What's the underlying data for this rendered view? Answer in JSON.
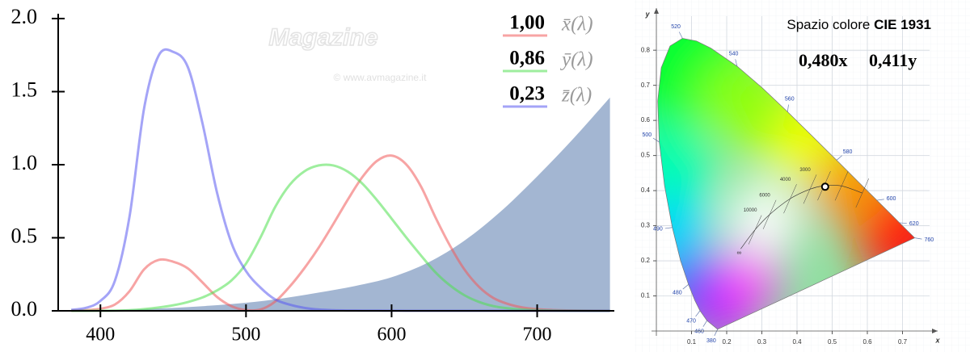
{
  "chart_data": [
    {
      "type": "line",
      "watermark": "Magazine",
      "watermark_url": "© www.avmagazine.it",
      "x": [
        380,
        390,
        400,
        410,
        420,
        430,
        440,
        450,
        460,
        470,
        480,
        490,
        500,
        510,
        520,
        530,
        540,
        550,
        560,
        570,
        580,
        590,
        600,
        610,
        620,
        630,
        640,
        650,
        660,
        670,
        680,
        690,
        700,
        710,
        720,
        730,
        740,
        750
      ],
      "xlim": [
        371,
        753
      ],
      "xticks": [
        400,
        500,
        600,
        700
      ],
      "ylim": [
        0,
        2
      ],
      "yticks": [
        {
          "value": 0,
          "label": "0.0"
        },
        {
          "value": 0.5,
          "label": "0.5"
        },
        {
          "value": 1,
          "label": "1.0"
        },
        {
          "value": 1.5,
          "label": "1.5"
        },
        {
          "value": 2,
          "label": "2.0"
        }
      ],
      "series": [
        {
          "name": "x̄(λ)",
          "color": "#f05a5a",
          "tristimulus": 1.0,
          "tristimulus_label": "1,00",
          "values": [
            0.0014,
            0.0042,
            0.0143,
            0.0435,
            0.1344,
            0.2839,
            0.3483,
            0.3362,
            0.2908,
            0.1954,
            0.0956,
            0.032,
            0.0049,
            0.0093,
            0.0633,
            0.1655,
            0.2904,
            0.4334,
            0.5945,
            0.7621,
            0.9163,
            1.0263,
            1.0622,
            1.0026,
            0.8544,
            0.6424,
            0.4479,
            0.2835,
            0.1649,
            0.0874,
            0.0468,
            0.0227,
            0.0114,
            0.0058,
            0.0029,
            0.0014,
            0.0007,
            0.0003
          ]
        },
        {
          "name": "ȳ(λ)",
          "color": "#4fe04f",
          "tristimulus": 0.86,
          "tristimulus_label": "0,86",
          "values": [
            0,
            0.0001,
            0.0004,
            0.0012,
            0.004,
            0.0116,
            0.023,
            0.038,
            0.06,
            0.091,
            0.139,
            0.208,
            0.323,
            0.503,
            0.71,
            0.862,
            0.954,
            0.995,
            0.995,
            0.952,
            0.87,
            0.757,
            0.631,
            0.503,
            0.381,
            0.265,
            0.175,
            0.107,
            0.061,
            0.032,
            0.017,
            0.0082,
            0.0041,
            0.0021,
            0.001,
            0.0005,
            0.0002,
            0.0001
          ]
        },
        {
          "name": "z̄(λ)",
          "color": "#5a5af0",
          "tristimulus": 0.23,
          "tristimulus_label": "0,23",
          "values": [
            0.0065,
            0.0201,
            0.0679,
            0.2074,
            0.6456,
            1.3856,
            1.7471,
            1.7721,
            1.6692,
            1.2876,
            0.813,
            0.4652,
            0.272,
            0.1582,
            0.0782,
            0.0422,
            0.0203,
            0.0087,
            0.0039,
            0.0021,
            0.0017,
            0.0011,
            0.0008,
            0.0003,
            0.0002,
            0,
            0,
            0,
            0,
            0,
            0,
            0,
            0,
            0,
            0,
            0,
            0,
            0
          ]
        }
      ],
      "area": {
        "color": "#a3b6d2",
        "x": [
          380,
          400,
          425,
          450,
          475,
          500,
          525,
          550,
          575,
          600,
          625,
          650,
          675,
          700,
          725,
          750
        ],
        "values": [
          0,
          0.005,
          0.01,
          0.02,
          0.035,
          0.055,
          0.085,
          0.125,
          0.17,
          0.23,
          0.33,
          0.48,
          0.68,
          0.92,
          1.18,
          1.46
        ]
      }
    },
    {
      "type": "chromaticity",
      "title": "Spazio colore",
      "title_bold": "CIE 1931",
      "x_label": "x",
      "y_label": "y",
      "xlim": [
        0,
        0.8
      ],
      "ylim": [
        0,
        0.92
      ],
      "xticks": [
        0.1,
        0.2,
        0.3,
        0.4,
        0.5,
        0.6,
        0.7
      ],
      "yticks": [
        0.1,
        0.2,
        0.3,
        0.4,
        0.5,
        0.6,
        0.7,
        0.8
      ],
      "wavelengths": [
        380,
        460,
        470,
        null,
        480,
        null,
        490,
        null,
        500,
        null,
        null,
        null,
        520,
        null,
        null,
        540,
        null,
        560,
        null,
        580,
        null,
        600,
        null,
        620,
        null,
        null,
        760
      ],
      "locus_x": [
        0.1741,
        0.144,
        0.1241,
        0.1096,
        0.0913,
        0.0687,
        0.0454,
        0.0235,
        0.0082,
        0.0039,
        0.0139,
        0.0389,
        0.0743,
        0.1142,
        0.1547,
        0.2296,
        0.3016,
        0.3731,
        0.4441,
        0.5125,
        0.5752,
        0.627,
        0.6658,
        0.6915,
        0.719,
        0.73,
        0.7347
      ],
      "locus_y": [
        0.005,
        0.0297,
        0.0578,
        0.0868,
        0.1327,
        0.2007,
        0.295,
        0.4127,
        0.5384,
        0.6548,
        0.7502,
        0.812,
        0.8338,
        0.8262,
        0.8059,
        0.7543,
        0.6923,
        0.6245,
        0.5547,
        0.4866,
        0.4242,
        0.3725,
        0.334,
        0.3083,
        0.2809,
        0.27,
        0.2653
      ],
      "planck_labels": [
        "∞",
        10000,
        6000,
        4000,
        3000,
        null,
        null,
        null
      ],
      "planck_x": [
        0.2399,
        0.2807,
        0.3221,
        0.3805,
        0.4369,
        0.4769,
        0.5267,
        0.5857
      ],
      "planck_y": [
        0.2342,
        0.2884,
        0.3318,
        0.3768,
        0.4041,
        0.4137,
        0.4133,
        0.3931
      ],
      "point": {
        "x": 0.48,
        "y": 0.411,
        "x_label": "0,480x",
        "y_label": "0,411y"
      }
    }
  ]
}
